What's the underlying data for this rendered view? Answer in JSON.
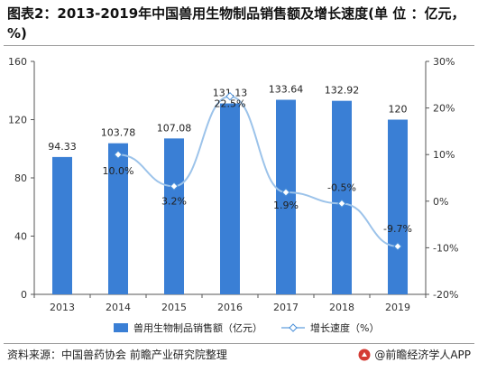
{
  "header": {
    "title": "图表2：2013-2019年中国兽用生物制品销售额及增长速度(单 位 ：亿元，%)"
  },
  "footer": {
    "source": "资料来源：中国兽药协会 前瞻产业研究院整理",
    "brand": "@前瞻经济学人APP"
  },
  "chart_data": {
    "type": "bar",
    "categories": [
      "2013",
      "2014",
      "2015",
      "2016",
      "2017",
      "2018",
      "2019"
    ],
    "series": [
      {
        "name": "兽用生物制品销售额（亿元）",
        "type": "bar",
        "axis": "left",
        "values": [
          94.33,
          103.78,
          107.08,
          131.13,
          133.64,
          132.92,
          120
        ],
        "labels": [
          "94.33",
          "103.78",
          "107.08",
          "131.13",
          "133.64",
          "132.92",
          "120"
        ],
        "color": "#3a7fd5"
      },
      {
        "name": "增长速度（%）",
        "type": "line",
        "axis": "right",
        "values": [
          10.0,
          3.2,
          22.5,
          1.9,
          -0.5,
          -9.7
        ],
        "x": [
          "2014",
          "2015",
          "2016",
          "2017",
          "2018",
          "2019"
        ],
        "labels": [
          "10.0%",
          "3.2%",
          "22.5%",
          "1.9%",
          "-0.5%",
          "-9.7%"
        ],
        "color": "#9cc3ea"
      }
    ],
    "yticks_left": [
      "0",
      "40",
      "80",
      "120",
      "160"
    ],
    "ylim_left": [
      0,
      160
    ],
    "yticks_right": [
      "-20%",
      "-10%",
      "0%",
      "10%",
      "20%",
      "30%"
    ],
    "ylim_right": [
      -20,
      30
    ],
    "legend_position": "bottom-center",
    "grid": false
  }
}
